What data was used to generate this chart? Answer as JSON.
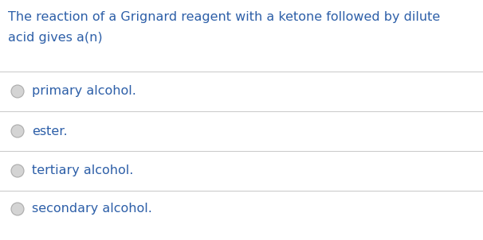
{
  "background_color": "#ffffff",
  "question_text_line1": "The reaction of a Grignard reagent with a ketone followed by dilute",
  "question_text_line2": "acid gives a(n)",
  "options": [
    "primary alcohol.",
    "ester.",
    "tertiary alcohol.",
    "secondary alcohol."
  ],
  "text_color": "#2d5fa8",
  "line_color": "#cccccc",
  "circle_fill": "#d4d4d4",
  "circle_edge": "#aaaaaa",
  "question_fontsize": 11.5,
  "option_fontsize": 11.5,
  "fig_width": 6.06,
  "fig_height": 3.02,
  "dpi": 100
}
